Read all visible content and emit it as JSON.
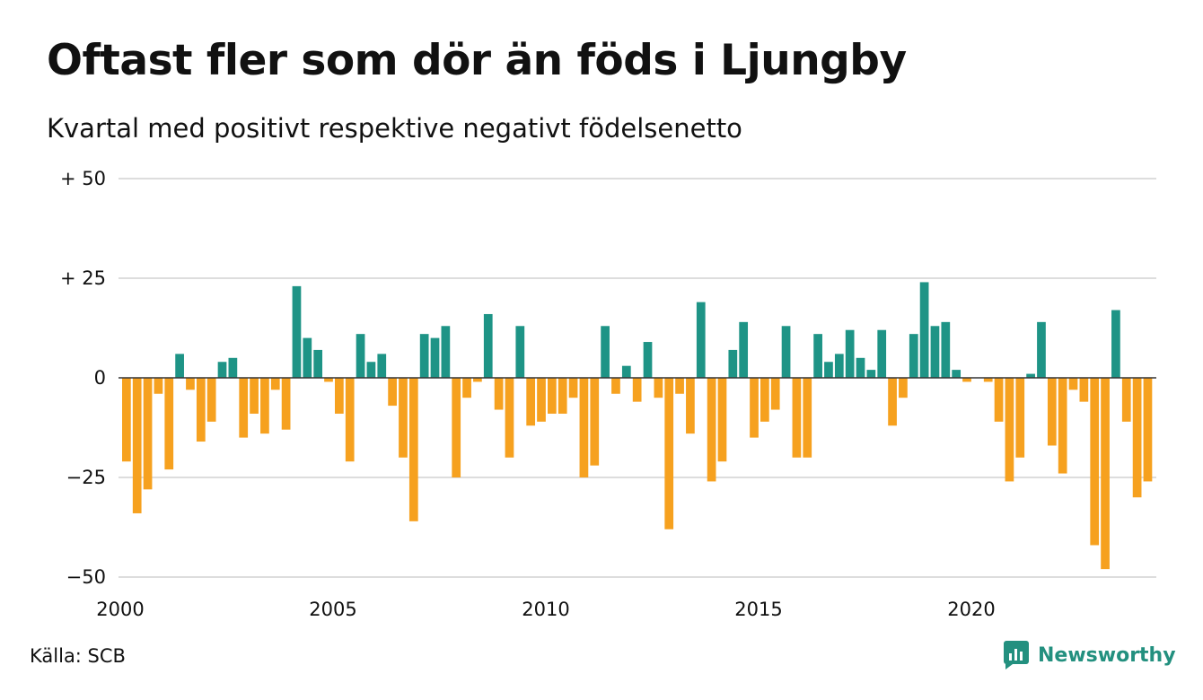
{
  "title": "Oftast fler som dör än föds i Ljungby",
  "subtitle": "Kvartal med positivt respektive negativt födelsenetto",
  "source": "Källa: SCB",
  "brand": {
    "name": "Newsworthy",
    "icon": "newsworthy-logo-icon",
    "color": "#23907f"
  },
  "colors": {
    "positive": "#1e9486",
    "negative": "#f6a11f",
    "grid": "#dddddd",
    "zero_line": "#333333"
  },
  "chart_data": {
    "type": "bar",
    "title": "Oftast fler som dör än föds i Ljungby",
    "subtitle": "Kvartal med positivt respektive negativt födelsenetto",
    "xlabel": "",
    "ylabel": "",
    "x_start": 2000,
    "periods_per_year": 4,
    "xlim": [
      2000,
      2024.5
    ],
    "ylim": [
      -55,
      55
    ],
    "grid": true,
    "y_ticks": [
      {
        "value": 50,
        "label": "+ 50"
      },
      {
        "value": 25,
        "label": "+ 25"
      },
      {
        "value": 0,
        "label": "0"
      },
      {
        "value": -25,
        "label": "−25"
      },
      {
        "value": -50,
        "label": "−50"
      }
    ],
    "x_ticks": [
      {
        "value": 2000,
        "label": "2000"
      },
      {
        "value": 2005,
        "label": "2005"
      },
      {
        "value": 2010,
        "label": "2010"
      },
      {
        "value": 2015,
        "label": "2015"
      },
      {
        "value": 2020,
        "label": "2020"
      }
    ],
    "values": [
      -21,
      -34,
      -28,
      -4,
      -23,
      6,
      -3,
      -16,
      -11,
      4,
      5,
      -15,
      -9,
      -14,
      -3,
      -13,
      23,
      10,
      7,
      -1,
      -9,
      -21,
      11,
      4,
      6,
      -7,
      -20,
      -36,
      11,
      10,
      13,
      -25,
      -5,
      -1,
      16,
      -8,
      -20,
      13,
      -12,
      -11,
      -9,
      -9,
      -5,
      -25,
      -22,
      13,
      -4,
      3,
      -6,
      9,
      -5,
      -38,
      -4,
      -14,
      19,
      -26,
      -21,
      7,
      14,
      -15,
      -11,
      -8,
      13,
      -20,
      -20,
      11,
      4,
      6,
      12,
      5,
      2,
      12,
      -12,
      -5,
      11,
      24,
      13,
      14,
      2,
      -1,
      0,
      -1,
      -11,
      -26,
      -20,
      1,
      14,
      -17,
      -24,
      -3,
      -6,
      -42,
      -48,
      17,
      -11,
      -30,
      -26
    ]
  }
}
